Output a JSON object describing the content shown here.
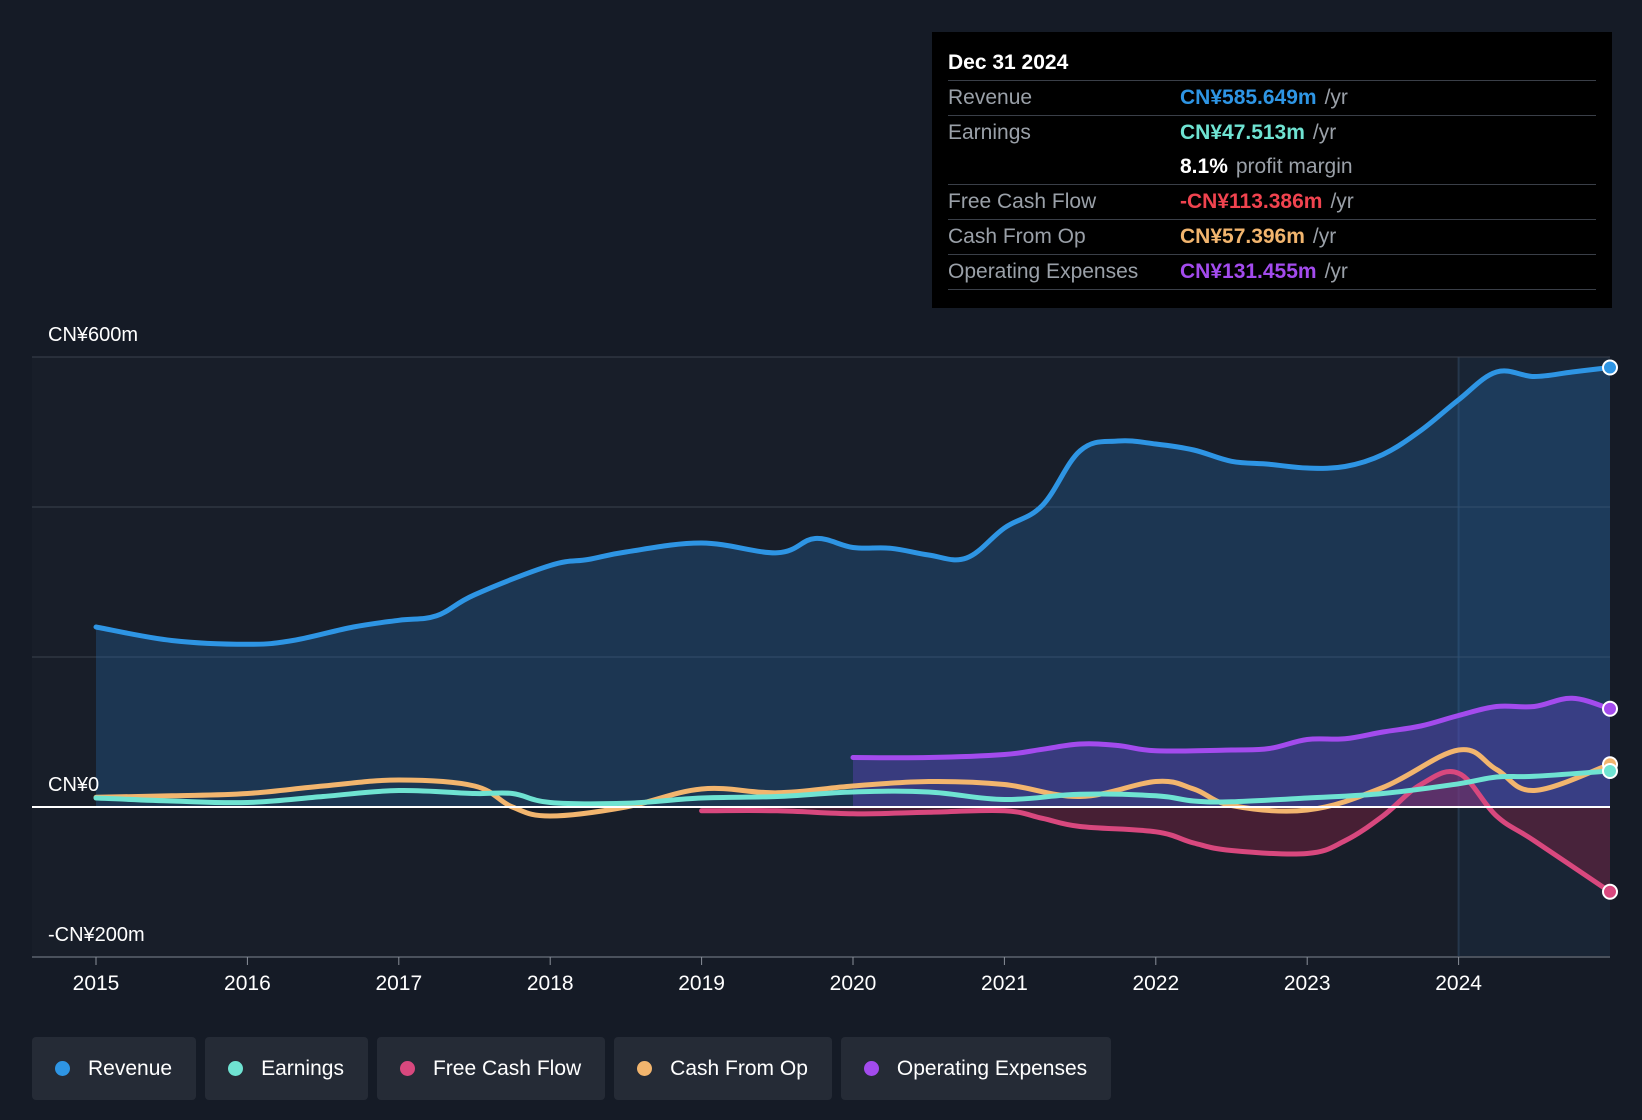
{
  "chart_data": {
    "type": "area",
    "currency_prefix": "CN¥",
    "y_axis_labels": [
      "CN¥600m",
      "CN¥0",
      "-CN¥200m"
    ],
    "ylim": [
      -200,
      600
    ],
    "x_ticks": [
      "2015",
      "2016",
      "2017",
      "2018",
      "2019",
      "2020",
      "2021",
      "2022",
      "2023",
      "2024"
    ],
    "xlim": [
      2014.58,
      2025.0
    ],
    "highlight_start": 2024.0,
    "series": [
      {
        "name": "Revenue",
        "color": "#2e95e4",
        "fill": "rgba(40,120,190,0.28)",
        "x": [
          2015.0,
          2015.5,
          2016.0,
          2016.3,
          2016.7,
          2017.0,
          2017.25,
          2017.5,
          2018.0,
          2018.25,
          2018.5,
          2019.0,
          2019.5,
          2019.75,
          2020.0,
          2020.25,
          2020.5,
          2020.75,
          2021.0,
          2021.25,
          2021.5,
          2021.75,
          2022.0,
          2022.25,
          2022.5,
          2022.75,
          2023.0,
          2023.25,
          2023.5,
          2023.75,
          2024.0,
          2024.25,
          2024.5,
          2024.75,
          2025.0
        ],
        "values": [
          240,
          222,
          217,
          222,
          240,
          249,
          255,
          283,
          322,
          330,
          340,
          352,
          339,
          358,
          346,
          345,
          336,
          332,
          372,
          402,
          475,
          488,
          484,
          476,
          461,
          457,
          452,
          454,
          470,
          502,
          543,
          580,
          574,
          580,
          586
        ]
      },
      {
        "name": "Earnings",
        "color": "#6fe3d2",
        "x": [
          2015.0,
          2015.5,
          2016.0,
          2016.5,
          2017.0,
          2017.5,
          2017.75,
          2018.0,
          2018.5,
          2019.0,
          2019.5,
          2020.0,
          2020.5,
          2021.0,
          2021.5,
          2022.0,
          2022.25,
          2022.5,
          2023.0,
          2023.5,
          2024.0,
          2024.25,
          2024.5,
          2025.0
        ],
        "values": [
          12,
          8,
          6,
          14,
          22,
          18,
          18,
          6,
          5,
          12,
          14,
          20,
          20,
          10,
          17,
          15,
          8,
          7,
          12,
          18,
          31,
          40,
          41,
          48
        ]
      },
      {
        "name": "Free Cash Flow",
        "color": "#d8487e",
        "fill": "rgba(150,35,70,0.38)",
        "x": [
          2019.0,
          2019.5,
          2020.0,
          2020.5,
          2021.0,
          2021.25,
          2021.5,
          2022.0,
          2022.25,
          2022.5,
          2023.0,
          2023.25,
          2023.5,
          2023.75,
          2024.0,
          2024.25,
          2024.5,
          2025.0
        ],
        "values": [
          -5,
          -5,
          -9,
          -7,
          -5,
          -15,
          -26,
          -33,
          -48,
          -58,
          -62,
          -45,
          -12,
          30,
          45,
          -12,
          -45,
          -113
        ]
      },
      {
        "name": "Cash From Op",
        "color": "#f2b56e",
        "x": [
          2015.0,
          2015.5,
          2016.0,
          2016.5,
          2017.0,
          2017.5,
          2017.75,
          2018.0,
          2018.5,
          2019.0,
          2019.5,
          2020.0,
          2020.5,
          2021.0,
          2021.5,
          2022.0,
          2022.25,
          2022.5,
          2023.0,
          2023.5,
          2024.0,
          2024.25,
          2024.5,
          2025.0
        ],
        "values": [
          13,
          15,
          18,
          28,
          36,
          28,
          0,
          -12,
          0,
          24,
          19,
          28,
          34,
          30,
          14,
          34,
          24,
          2,
          -4,
          26,
          76,
          50,
          22,
          57
        ]
      },
      {
        "name": "Operating Expenses",
        "color": "#a34bed",
        "fill": "rgba(110,70,210,0.35)",
        "x": [
          2020.0,
          2020.5,
          2021.0,
          2021.25,
          2021.5,
          2021.75,
          2022.0,
          2022.5,
          2022.75,
          2023.0,
          2023.25,
          2023.5,
          2023.75,
          2024.0,
          2024.25,
          2024.5,
          2024.75,
          2025.0
        ],
        "values": [
          66,
          66,
          70,
          77,
          84,
          82,
          75,
          76,
          78,
          90,
          91,
          100,
          108,
          122,
          134,
          134,
          145,
          131
        ]
      }
    ],
    "legend": [
      {
        "name": "Revenue",
        "color": "#2e95e4"
      },
      {
        "name": "Earnings",
        "color": "#6fe3d2"
      },
      {
        "name": "Free Cash Flow",
        "color": "#d8487e"
      },
      {
        "name": "Cash From Op",
        "color": "#f2b56e"
      },
      {
        "name": "Operating Expenses",
        "color": "#a34bed"
      }
    ]
  },
  "tooltip": {
    "date": "Dec 31 2024",
    "rows": [
      {
        "name": "Revenue",
        "value": "CN¥585.649m",
        "unit": "/yr",
        "color": "#2e95e4"
      },
      {
        "name": "Earnings",
        "value": "CN¥47.513m",
        "unit": "/yr",
        "color": "#6fe3d2"
      },
      {
        "name": "",
        "value": "8.1%",
        "unit": "profit margin",
        "color": "#ffffff"
      },
      {
        "name": "Free Cash Flow",
        "value": "-CN¥113.386m",
        "unit": "/yr",
        "color": "#f0434f"
      },
      {
        "name": "Cash From Op",
        "value": "CN¥57.396m",
        "unit": "/yr",
        "color": "#f2b56e"
      },
      {
        "name": "Operating Expenses",
        "value": "CN¥131.455m",
        "unit": "/yr",
        "color": "#a34bed"
      }
    ]
  }
}
